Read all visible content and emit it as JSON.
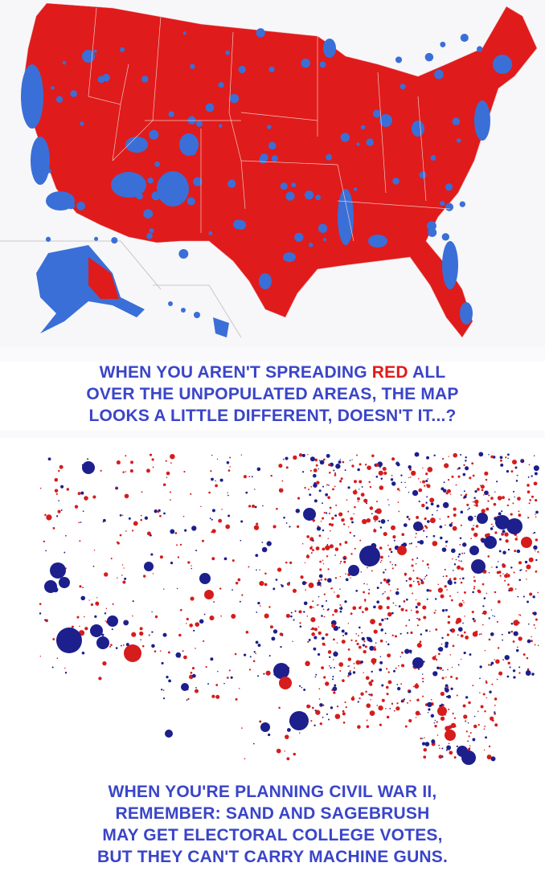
{
  "colors": {
    "red": "#e01b1b",
    "blue": "#3a6fd8",
    "dot_blue": "#1c1f8c",
    "dot_red": "#d61c1c",
    "caption": "#3a45c8"
  },
  "top_map": {
    "type": "county choropleth",
    "region": "United States"
  },
  "caption1": {
    "line1_before": "WHEN YOU AREN'T SPREADING ",
    "line1_highlight": "RED",
    "line1_after": " ALL",
    "line2": "OVER THE UNPOPULATED AREAS, THE MAP",
    "line3": "LOOKS A LITTLE DIFFERENT, DOESN'T IT...?"
  },
  "bottom_map": {
    "type": "proportional bubble map",
    "region": "United States"
  },
  "caption2": {
    "line1": "WHEN YOU'RE PLANNING CIVIL WAR II,",
    "line2": "REMEMBER: SAND AND SAGEBRUSH",
    "line3": "MAY GET ELECTORAL COLLEGE VOTES,",
    "line4": "BUT THEY CAN'T CARRY MACHINE GUNS."
  }
}
